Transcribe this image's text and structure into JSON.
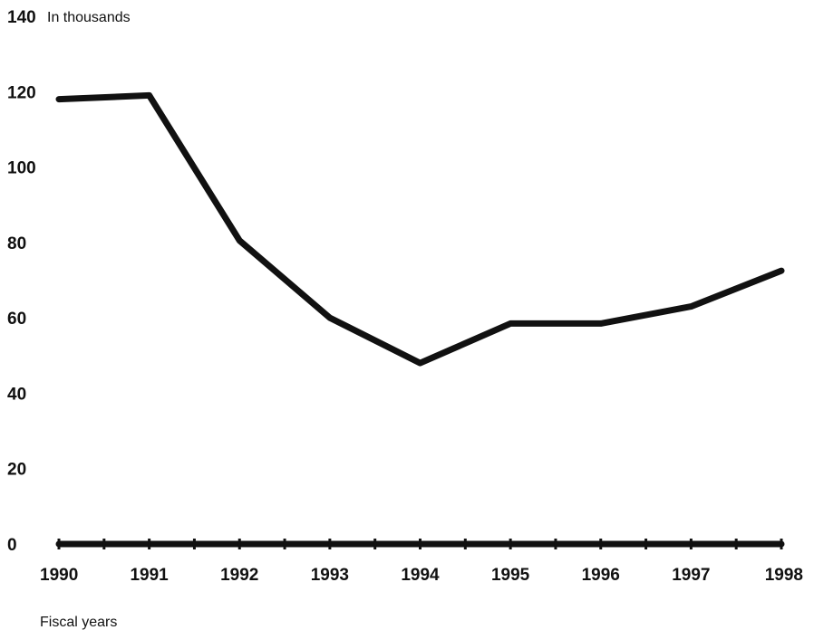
{
  "chart_data": {
    "type": "line",
    "title": "",
    "ylabel": "In thousands",
    "xlabel": "Fiscal years",
    "categories": [
      "1990",
      "1991",
      "1992",
      "1993",
      "1994",
      "1995",
      "1996",
      "1997",
      "1998"
    ],
    "y_ticks": [
      "0",
      "20",
      "40",
      "60",
      "80",
      "100",
      "120",
      "140"
    ],
    "ylim": [
      0,
      140
    ],
    "grid": false,
    "legend": "none",
    "series": [
      {
        "values": [
          118,
          119,
          80.5,
          60,
          48,
          58.5,
          58.5,
          63,
          72.5
        ]
      }
    ],
    "colors": {
      "line": "#111111",
      "axis": "#111111"
    }
  }
}
